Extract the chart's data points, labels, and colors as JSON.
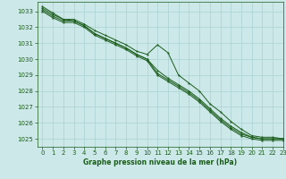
{
  "background_color": "#cce8e8",
  "grid_color": "#aad0d0",
  "line_color": "#1a5c1a",
  "title": "Graphe pression niveau de la mer (hPa)",
  "xlim": [
    -0.5,
    23
  ],
  "ylim": [
    1024.5,
    1033.6
  ],
  "yticks": [
    1025,
    1026,
    1027,
    1028,
    1029,
    1030,
    1031,
    1032,
    1033
  ],
  "xticks": [
    0,
    1,
    2,
    3,
    4,
    5,
    6,
    7,
    8,
    9,
    10,
    11,
    12,
    13,
    14,
    15,
    16,
    17,
    18,
    19,
    20,
    21,
    22,
    23
  ],
  "series": [
    [
      1033.3,
      1032.9,
      1032.5,
      1032.5,
      1032.2,
      1031.8,
      1031.5,
      1031.2,
      1030.9,
      1030.5,
      1030.3,
      1030.9,
      1030.4,
      1029.0,
      1028.5,
      1028.0,
      1027.2,
      1026.7,
      1026.1,
      1025.6,
      1025.2,
      1025.1,
      1025.1,
      1025.0
    ],
    [
      1033.1,
      1032.7,
      1032.4,
      1032.4,
      1032.1,
      1031.6,
      1031.3,
      1031.0,
      1030.7,
      1030.3,
      1030.0,
      1029.3,
      1028.8,
      1028.4,
      1028.0,
      1027.5,
      1026.9,
      1026.3,
      1025.8,
      1025.4,
      1025.1,
      1025.0,
      1025.0,
      1025.0
    ],
    [
      1033.2,
      1032.8,
      1032.5,
      1032.4,
      1032.1,
      1031.6,
      1031.3,
      1031.0,
      1030.7,
      1030.3,
      1030.0,
      1029.1,
      1028.7,
      1028.3,
      1027.9,
      1027.4,
      1026.8,
      1026.2,
      1025.7,
      1025.3,
      1025.1,
      1025.0,
      1025.0,
      1025.0
    ],
    [
      1033.0,
      1032.6,
      1032.3,
      1032.3,
      1032.0,
      1031.5,
      1031.2,
      1030.9,
      1030.6,
      1030.2,
      1029.9,
      1029.0,
      1028.6,
      1028.2,
      1027.8,
      1027.3,
      1026.7,
      1026.1,
      1025.6,
      1025.2,
      1025.0,
      1024.9,
      1024.9,
      1024.9
    ]
  ]
}
